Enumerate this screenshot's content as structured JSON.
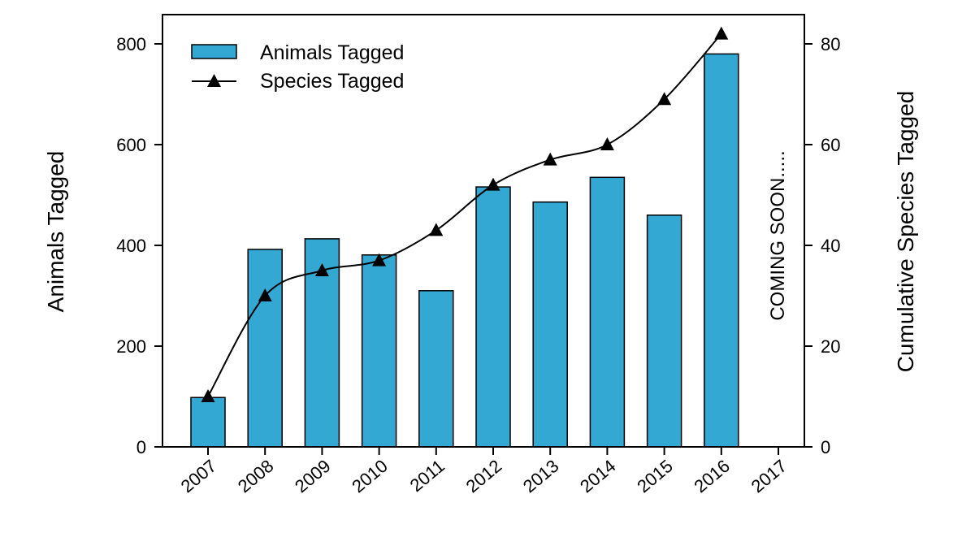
{
  "chart_data": {
    "type": "bar+line",
    "categories": [
      "2007",
      "2008",
      "2009",
      "2010",
      "2011",
      "2012",
      "2013",
      "2014",
      "2015",
      "2016",
      "2017"
    ],
    "series": [
      {
        "name": "Animals Tagged",
        "type": "bar",
        "axis": "left",
        "color": "#33a8d2",
        "values": [
          98,
          392,
          413,
          381,
          310,
          516,
          486,
          535,
          460,
          780,
          null
        ]
      },
      {
        "name": "Species Tagged",
        "type": "line",
        "axis": "right",
        "color": "#000000",
        "marker": "triangle",
        "values": [
          10,
          30,
          35,
          37,
          43,
          52,
          57,
          60,
          69,
          82,
          null
        ]
      }
    ],
    "ylabel": "Animals Tagged",
    "y2label": "Cumulative Species Tagged",
    "ylim": [
      0,
      800
    ],
    "y2lim": [
      0,
      80
    ],
    "yticks": [
      0,
      200,
      400,
      600,
      800
    ],
    "y2ticks": [
      0,
      20,
      40,
      60,
      80
    ],
    "annotation": "COMING SOON.....",
    "legend": "top-left",
    "grid": false
  }
}
